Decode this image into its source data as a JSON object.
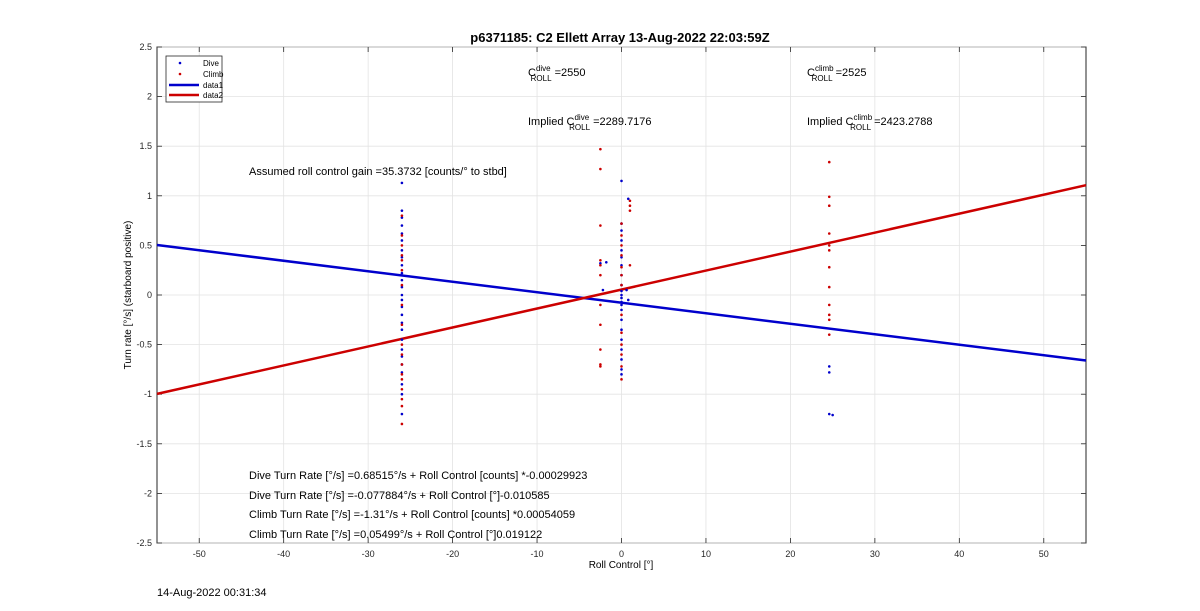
{
  "footer_timestamp": "14-Aug-2022 00:31:34",
  "chart_data": {
    "type": "scatter",
    "title": "p6371185: C2 Ellett Array 13-Aug-2022 22:03:59Z",
    "xlabel": "Roll Control [°]",
    "ylabel": "Turn rate [°/s] (starboard positive)",
    "xlim": [
      -55,
      55
    ],
    "ylim": [
      -2.5,
      2.5
    ],
    "xticks": [
      -50,
      -40,
      -30,
      -20,
      -10,
      0,
      10,
      20,
      30,
      40,
      50
    ],
    "yticks": [
      -2.5,
      -2,
      -1.5,
      -1,
      -0.5,
      0,
      0.5,
      1,
      1.5,
      2,
      2.5
    ],
    "grid": true,
    "legend_position": "top-left",
    "legend": [
      {
        "label": "Dive",
        "kind": "marker",
        "color": "#0000cc"
      },
      {
        "label": "Climb",
        "kind": "marker",
        "color": "#cc0000"
      },
      {
        "label": "data1",
        "kind": "line",
        "color": "#0000cc"
      },
      {
        "label": "data2",
        "kind": "line",
        "color": "#cc0000"
      }
    ],
    "annotations": {
      "c_dive_base": "C",
      "c_dive_sup": "dive",
      "c_dive_sub": "ROLL",
      "c_dive_val": " =2550",
      "c_climb_base": "C",
      "c_climb_sup": "climb",
      "c_climb_sub": "ROLL",
      "c_climb_val": " =2525",
      "implied_dive_pre": "Implied C",
      "implied_dive_sup": "dive",
      "implied_dive_sub": "ROLL",
      "implied_dive_val": " =2289.7176",
      "implied_climb_pre": "Implied C",
      "implied_climb_sup": "climb",
      "implied_climb_sub": "ROLL",
      "implied_climb_val": " =2423.2788",
      "gain": "Assumed roll control gain =35.3732 [counts/° to stbd]",
      "fit1": "Dive Turn Rate [°/s] =0.68515°/s + Roll Control [counts] *-0.00029923",
      "fit2": "Dive Turn Rate [°/s] =-0.077884°/s + Roll Control [°]-0.010585",
      "fit3": "Climb Turn Rate [°/s] =-1.31°/s + Roll Control [counts] *0.00054059",
      "fit4": "Climb Turn Rate [°/s] =0.05499°/s + Roll Control [°]0.019122"
    },
    "series": [
      {
        "name": "Dive",
        "kind": "scatter",
        "color": "#0000cc",
        "points": [
          [
            -26,
            1.13
          ],
          [
            -26,
            0.85
          ],
          [
            -26,
            0.78
          ],
          [
            -26,
            0.7
          ],
          [
            -26,
            0.62
          ],
          [
            -26,
            0.55
          ],
          [
            -26,
            0.45
          ],
          [
            -26,
            0.38
          ],
          [
            -26,
            0.3
          ],
          [
            -26,
            0.22
          ],
          [
            -26,
            0.15
          ],
          [
            -26,
            0.08
          ],
          [
            -26,
            0.0
          ],
          [
            -26,
            -0.05
          ],
          [
            -26,
            -0.12
          ],
          [
            -26,
            -0.2
          ],
          [
            -26,
            -0.28
          ],
          [
            -26,
            -0.35
          ],
          [
            -26,
            -0.45
          ],
          [
            -26,
            -0.55
          ],
          [
            -26,
            -0.62
          ],
          [
            -26,
            -0.7
          ],
          [
            -26,
            -0.78
          ],
          [
            -26,
            -0.9
          ],
          [
            -26,
            -1.0
          ],
          [
            -26,
            -1.2
          ],
          [
            -2.5,
            0.32
          ],
          [
            -1.8,
            0.33
          ],
          [
            -2.2,
            0.05
          ],
          [
            0,
            1.15
          ],
          [
            0,
            0.72
          ],
          [
            0,
            0.65
          ],
          [
            0,
            0.55
          ],
          [
            0,
            0.45
          ],
          [
            0,
            0.38
          ],
          [
            0,
            0.3
          ],
          [
            0,
            0.2
          ],
          [
            0,
            0.1
          ],
          [
            0,
            0.04
          ],
          [
            0,
            0.0
          ],
          [
            0,
            -0.03
          ],
          [
            0,
            -0.07
          ],
          [
            0,
            -0.1
          ],
          [
            0,
            -0.15
          ],
          [
            0,
            -0.25
          ],
          [
            0,
            -0.35
          ],
          [
            0,
            -0.45
          ],
          [
            0,
            -0.55
          ],
          [
            0,
            -0.65
          ],
          [
            0,
            -0.75
          ],
          [
            0,
            -0.8
          ],
          [
            0.6,
            0.05
          ],
          [
            0.8,
            -0.05
          ],
          [
            0.8,
            0.97
          ],
          [
            24.6,
            -0.72
          ],
          [
            24.6,
            -0.78
          ],
          [
            24.6,
            -1.2
          ],
          [
            25,
            -1.21
          ]
        ]
      },
      {
        "name": "Climb",
        "kind": "scatter",
        "color": "#cc0000",
        "points": [
          [
            -26,
            0.8
          ],
          [
            -26,
            0.6
          ],
          [
            -26,
            0.5
          ],
          [
            -26,
            0.4
          ],
          [
            -26,
            0.35
          ],
          [
            -26,
            0.25
          ],
          [
            -26,
            0.1
          ],
          [
            -26,
            -0.1
          ],
          [
            -26,
            -0.3
          ],
          [
            -26,
            -0.5
          ],
          [
            -26,
            -0.6
          ],
          [
            -26,
            -0.7
          ],
          [
            -26,
            -0.8
          ],
          [
            -26,
            -0.85
          ],
          [
            -26,
            -0.95
          ],
          [
            -26,
            -1.05
          ],
          [
            -26,
            -1.12
          ],
          [
            -26,
            -1.3
          ],
          [
            -2.5,
            1.47
          ],
          [
            -2.5,
            1.27
          ],
          [
            -2.5,
            0.7
          ],
          [
            -2.5,
            0.35
          ],
          [
            -2.5,
            0.3
          ],
          [
            -2.5,
            0.2
          ],
          [
            -2.5,
            -0.1
          ],
          [
            -2.5,
            -0.3
          ],
          [
            -2.5,
            -0.55
          ],
          [
            -2.5,
            -0.7
          ],
          [
            -2.5,
            -0.72
          ],
          [
            0,
            0.72
          ],
          [
            0,
            0.6
          ],
          [
            0,
            0.5
          ],
          [
            0,
            0.4
          ],
          [
            0,
            0.28
          ],
          [
            0,
            0.2
          ],
          [
            0,
            0.1
          ],
          [
            0,
            -0.2
          ],
          [
            0,
            -0.38
          ],
          [
            0,
            -0.5
          ],
          [
            0,
            -0.6
          ],
          [
            0,
            -0.72
          ],
          [
            0,
            -0.85
          ],
          [
            1,
            0.95
          ],
          [
            1,
            0.9
          ],
          [
            1,
            0.85
          ],
          [
            1,
            0.3
          ],
          [
            24.6,
            1.34
          ],
          [
            24.6,
            0.99
          ],
          [
            24.6,
            0.9
          ],
          [
            24.6,
            0.62
          ],
          [
            24.6,
            0.5
          ],
          [
            24.6,
            0.45
          ],
          [
            24.6,
            0.28
          ],
          [
            24.6,
            0.08
          ],
          [
            24.6,
            -0.1
          ],
          [
            24.6,
            -0.2
          ],
          [
            24.6,
            -0.25
          ],
          [
            24.6,
            -0.4
          ]
        ]
      },
      {
        "name": "data1",
        "kind": "line",
        "color": "#0000cc",
        "points": [
          [
            -55,
            0.504
          ],
          [
            55,
            -0.66
          ]
        ]
      },
      {
        "name": "data2",
        "kind": "line",
        "color": "#cc0000",
        "points": [
          [
            -55,
            -0.997
          ],
          [
            55,
            1.107
          ]
        ]
      }
    ]
  }
}
